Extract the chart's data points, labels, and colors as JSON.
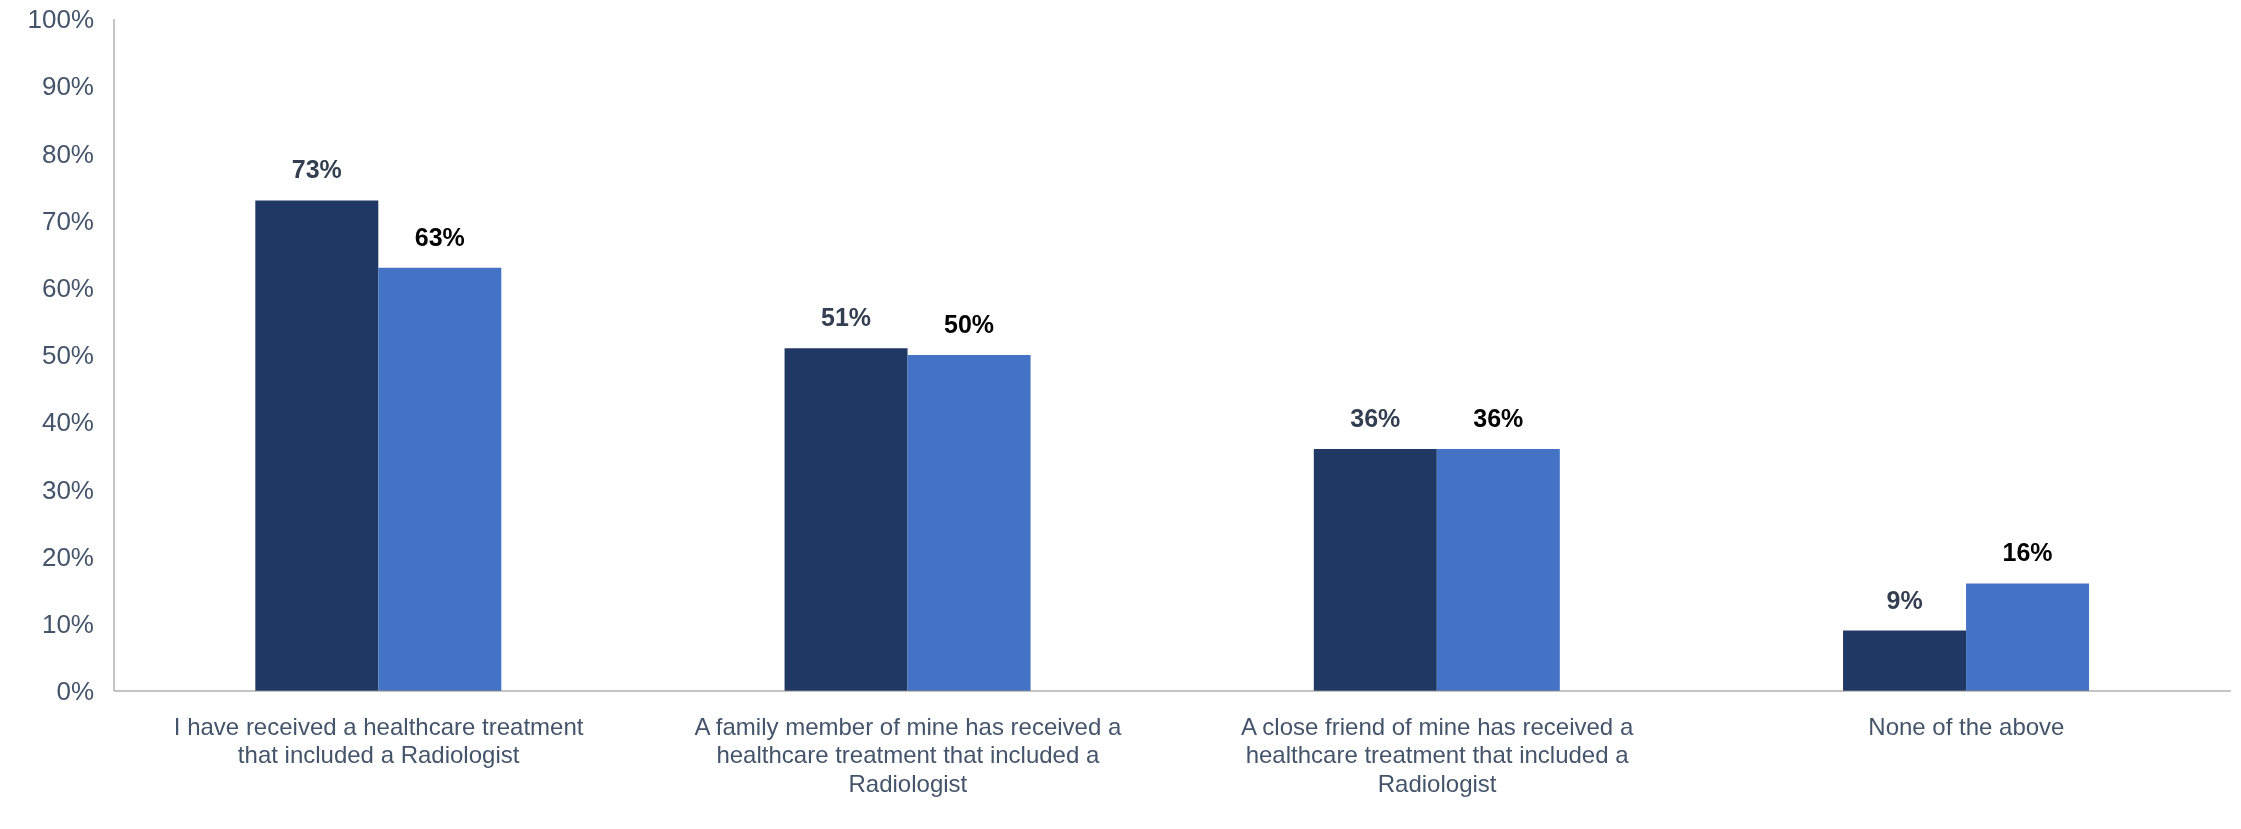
{
  "chart_data": {
    "type": "bar",
    "categories": [
      "I have received a healthcare treatment that included a Radiologist",
      "A family member of mine has received a healthcare treatment that included a Radiologist",
      "A close friend of mine has received a healthcare treatment that included a Radiologist",
      "None of the above"
    ],
    "series": [
      {
        "color": "#203864",
        "values": [
          73,
          51,
          36,
          9
        ],
        "value_labels": [
          "73%",
          "51%",
          "36%",
          "9%"
        ]
      },
      {
        "color": "#4472c4",
        "values": [
          63,
          50,
          36,
          16
        ],
        "value_labels": [
          "63%",
          "50%",
          "36%",
          "16%"
        ]
      }
    ],
    "ylim": [
      0,
      100
    ],
    "yticks": [
      {
        "value": 0,
        "label": "0%"
      },
      {
        "value": 10,
        "label": "10%"
      },
      {
        "value": 20,
        "label": "20%"
      },
      {
        "value": 30,
        "label": "30%"
      },
      {
        "value": 40,
        "label": "40%"
      },
      {
        "value": 50,
        "label": "50%"
      },
      {
        "value": 60,
        "label": "60%"
      },
      {
        "value": 70,
        "label": "70%"
      },
      {
        "value": 80,
        "label": "80%"
      },
      {
        "value": 90,
        "label": "90%"
      },
      {
        "value": 100,
        "label": "100%"
      }
    ],
    "grid": false,
    "legend": false
  }
}
